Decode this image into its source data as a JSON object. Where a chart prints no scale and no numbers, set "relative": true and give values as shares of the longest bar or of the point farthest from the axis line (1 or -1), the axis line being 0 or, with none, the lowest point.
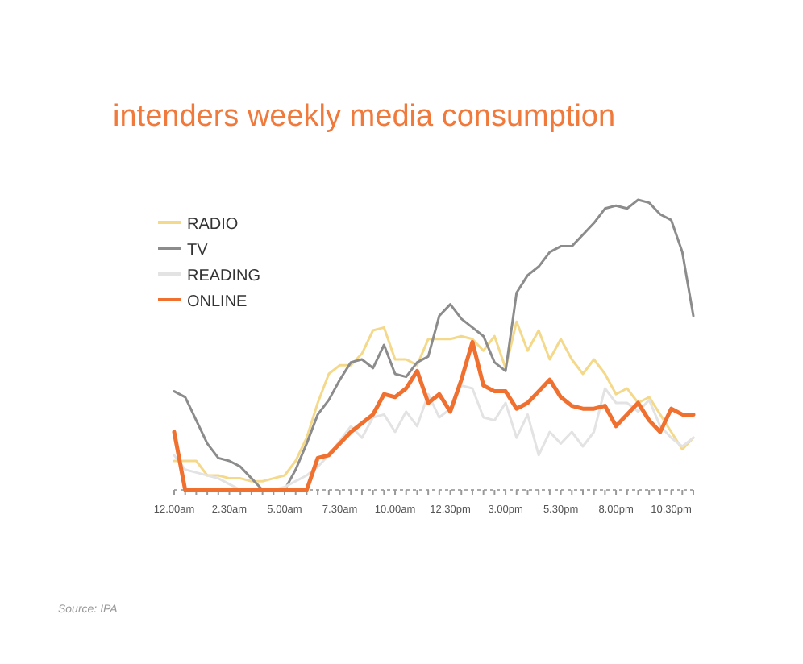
{
  "chart_data": {
    "type": "line",
    "title": "intenders weekly media consumption",
    "relative": true,
    "legend": "top left",
    "categories": [
      "12.00am",
      null,
      null,
      null,
      null,
      "2.30am",
      null,
      null,
      null,
      null,
      "5.00am",
      null,
      null,
      null,
      null,
      "7.30am",
      null,
      null,
      null,
      null,
      "10.00am",
      null,
      null,
      null,
      null,
      "12.30pm",
      null,
      null,
      null,
      null,
      "3.00pm",
      null,
      null,
      null,
      null,
      "5.30pm",
      null,
      null,
      null,
      null,
      "8.00pm",
      null,
      null,
      null,
      null,
      "10.30pm",
      null,
      null
    ],
    "series": [
      {
        "name": "RADIO",
        "color": "#f5d98a",
        "values": [
          0.1,
          0.1,
          0.1,
          0.05,
          0.05,
          0.04,
          0.04,
          0.03,
          0.03,
          0.04,
          0.05,
          0.1,
          0.18,
          0.3,
          0.4,
          0.43,
          0.43,
          0.47,
          0.55,
          0.56,
          0.45,
          0.45,
          0.43,
          0.52,
          0.52,
          0.52,
          0.53,
          0.52,
          0.48,
          0.53,
          0.42,
          0.58,
          0.48,
          0.55,
          0.45,
          0.52,
          0.45,
          0.4,
          0.45,
          0.4,
          0.33,
          0.35,
          0.3,
          0.32,
          0.26,
          0.2,
          0.14,
          0.18
        ]
      },
      {
        "name": "TV",
        "color": "#8c8c8c",
        "values": [
          0.34,
          0.32,
          0.24,
          0.16,
          0.11,
          0.1,
          0.08,
          0.04,
          0,
          0,
          0,
          0.07,
          0.16,
          0.26,
          0.31,
          0.38,
          0.44,
          0.45,
          0.42,
          0.5,
          0.4,
          0.39,
          0.44,
          0.46,
          0.6,
          0.64,
          0.59,
          0.56,
          0.53,
          0.44,
          0.41,
          0.68,
          0.74,
          0.77,
          0.82,
          0.84,
          0.84,
          0.88,
          0.92,
          0.97,
          0.98,
          0.97,
          1,
          0.99,
          0.95,
          0.93,
          0.82,
          0.6
        ]
      },
      {
        "name": "READING",
        "color": "#e3e3e3",
        "values": [
          0.12,
          0.07,
          0.06,
          0.05,
          0.04,
          0.02,
          0,
          0,
          0,
          0,
          0.01,
          0.03,
          0.05,
          0.08,
          0.12,
          0.17,
          0.22,
          0.18,
          0.25,
          0.26,
          0.2,
          0.27,
          0.22,
          0.33,
          0.25,
          0.28,
          0.36,
          0.35,
          0.25,
          0.24,
          0.3,
          0.18,
          0.26,
          0.12,
          0.2,
          0.16,
          0.2,
          0.15,
          0.2,
          0.35,
          0.3,
          0.3,
          0.27,
          0.31,
          0.22,
          0.18,
          0.15,
          0.18
        ]
      },
      {
        "name": "ONLINE",
        "color": "#f07030",
        "values": [
          0.2,
          0,
          0,
          0,
          0,
          0,
          0,
          0,
          0,
          0,
          0,
          0,
          0,
          0.11,
          0.12,
          0.16,
          0.2,
          0.23,
          0.26,
          0.33,
          0.32,
          0.35,
          0.41,
          0.3,
          0.33,
          0.27,
          0.38,
          0.51,
          0.36,
          0.34,
          0.34,
          0.28,
          0.3,
          0.34,
          0.38,
          0.32,
          0.29,
          0.28,
          0.28,
          0.29,
          0.22,
          0.26,
          0.3,
          0.24,
          0.2,
          0.28,
          0.26,
          0.26
        ]
      }
    ],
    "annotations": [
      "Source: IPA"
    ]
  }
}
